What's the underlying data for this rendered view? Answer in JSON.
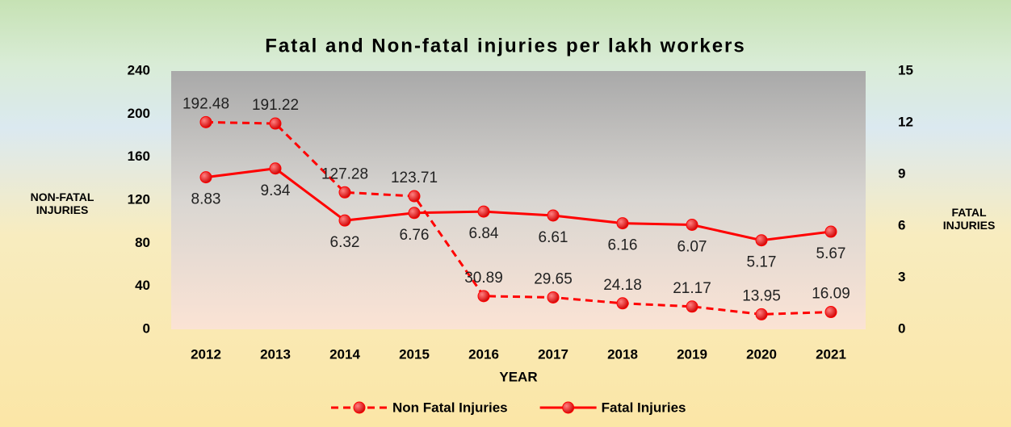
{
  "chart_data": {
    "type": "line",
    "title": "Fatal and Non-fatal injuries per lakh workers",
    "x_label": "YEAR",
    "y_label": "NON-FATAL INJURIES",
    "y2_label": "FATAL INJURIES",
    "categories": [
      "2012",
      "2013",
      "2014",
      "2015",
      "2016",
      "2017",
      "2018",
      "2019",
      "2020",
      "2021"
    ],
    "series": [
      {
        "name": "Non Fatal Injuries",
        "color": "#ff0000",
        "dashed": true,
        "values": [
          192.48,
          191.22,
          127.28,
          123.71,
          30.89,
          29.65,
          24.18,
          21.17,
          13.95,
          16.09
        ]
      },
      {
        "name": "Fatal Injuries",
        "color": "#ff0000",
        "dashed": false,
        "axis": "y2",
        "values": [
          8.83,
          9.34,
          6.32,
          6.76,
          6.84,
          6.61,
          6.16,
          6.07,
          5.17,
          5.67
        ]
      }
    ],
    "ylim": [
      0,
      240
    ],
    "yticks": [
      0,
      40,
      80,
      120,
      160,
      200,
      240
    ],
    "y2lim": [
      0,
      15
    ],
    "y2ticks": [
      0,
      3,
      6,
      9,
      12,
      15
    ],
    "legend": "bottom"
  }
}
